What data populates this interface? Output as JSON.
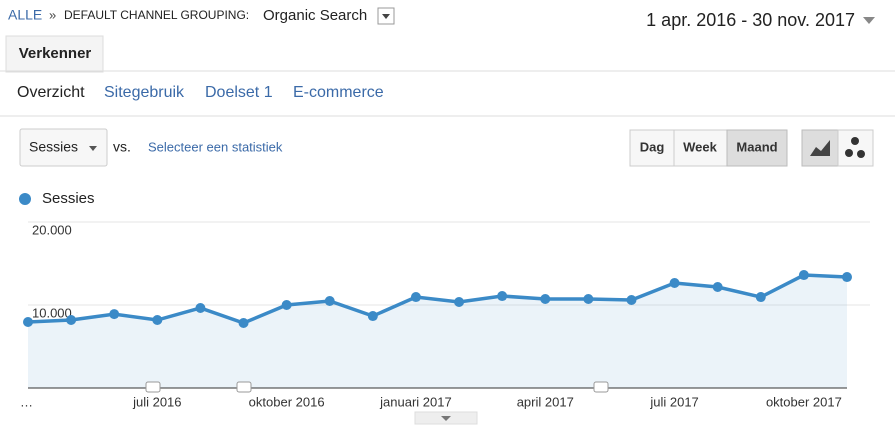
{
  "breadcrumb": {
    "root": "ALLE",
    "separator": "»",
    "label": "DEFAULT CHANNEL GROUPING:",
    "value": "Organic Search"
  },
  "date_range": "1 apr. 2016 - 30 nov. 2017",
  "tab": "Verkenner",
  "subtabs": [
    "Overzicht",
    "Sitegebruik",
    "Doelset 1",
    "E-commerce"
  ],
  "controls": {
    "metric": "Sessies",
    "vs": "vs.",
    "select": "Selecteer een statistiek",
    "periods": [
      "Dag",
      "Week",
      "Maand"
    ]
  },
  "chart_data": {
    "type": "line",
    "categories": [
      "…",
      null,
      null,
      "juli 2016",
      null,
      null,
      "oktober 2016",
      null,
      null,
      "januari 2017",
      null,
      null,
      "april 2017",
      null,
      null,
      "juli 2017",
      null,
      null,
      "oktober 2017",
      null
    ],
    "series": [
      {
        "name": "Sessies",
        "color": "#3b8ac7",
        "values": [
          7950,
          8190,
          8900,
          8190,
          9640,
          7830,
          10000,
          10480,
          8670,
          10960,
          10360,
          11080,
          10720,
          10720,
          10600,
          12650,
          12170,
          10960,
          13610,
          13370
        ]
      }
    ],
    "ylim": [
      0,
      20000
    ],
    "yticks": [
      {
        "value": 10000,
        "label": "10.000"
      },
      {
        "value": 20000,
        "label": "20.000"
      }
    ],
    "grid": true
  }
}
